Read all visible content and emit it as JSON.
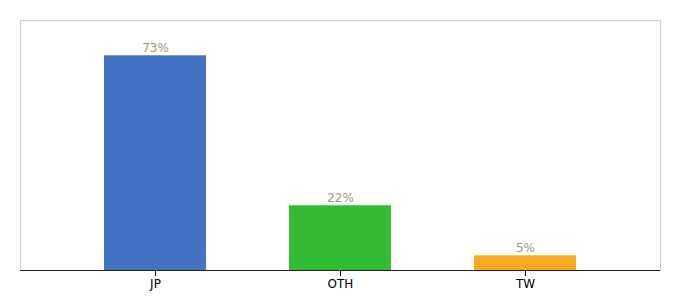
{
  "chart_data": {
    "type": "bar",
    "categories": [
      "JP",
      "OTH",
      "TW"
    ],
    "values": [
      73,
      22,
      5
    ],
    "value_labels": [
      "73%",
      "22%",
      "5%"
    ],
    "colors": [
      "#4472c4",
      "#33bb33",
      "#f9a825"
    ],
    "ylim": [
      0,
      85
    ],
    "data_labels": true,
    "tick_labels": "x"
  }
}
